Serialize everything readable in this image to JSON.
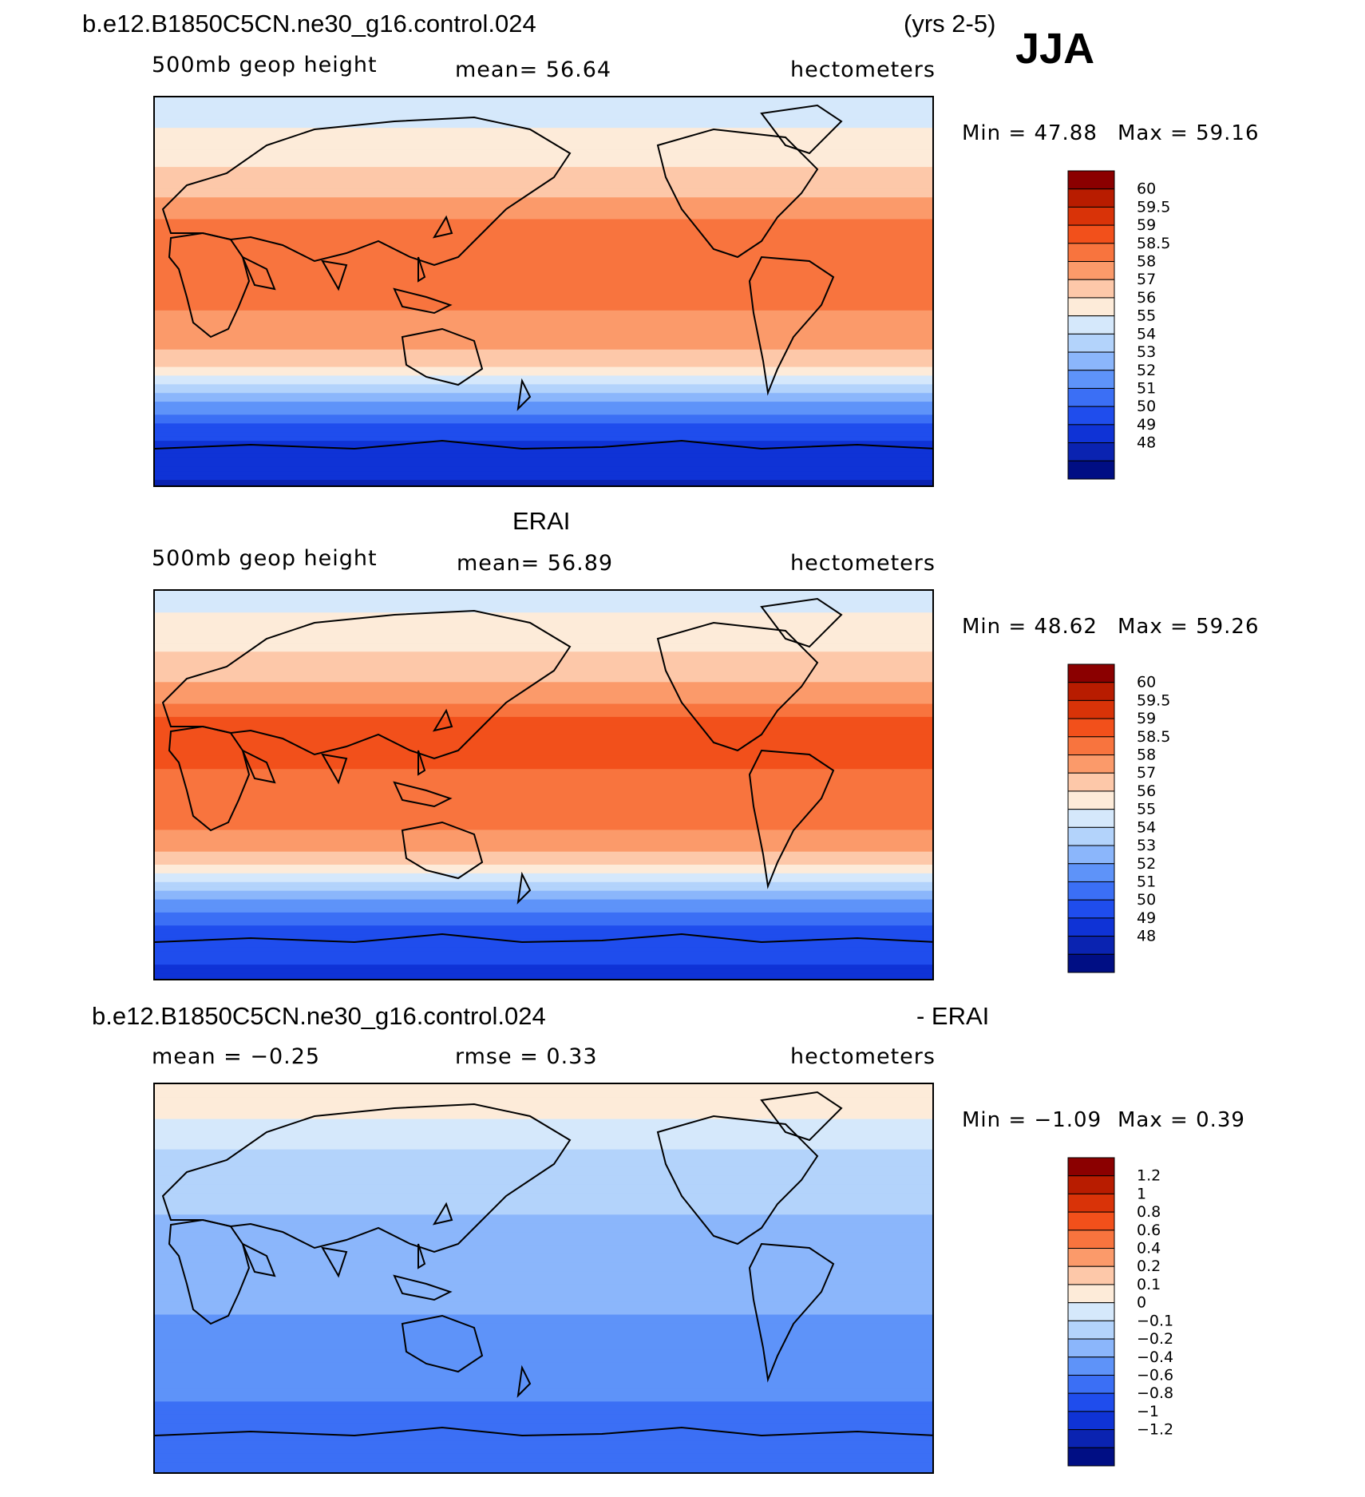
{
  "figure": {
    "case_title": "b.e12.B1850C5CN.ne30_g16.control.024",
    "years": "(yrs 2-5)",
    "season": "JJA",
    "obs_title": "ERAI",
    "diff_case_title": "b.e12.B1850C5CN.ne30_g16.control.024",
    "diff_suffix": "- ERAI"
  },
  "panels": [
    {
      "variable": "500mb  geop height",
      "mean_text": "mean=   56.64",
      "units": "hectometers",
      "min_text": "Min =   47.88",
      "max_text": "Max =   59.16"
    },
    {
      "variable": "500mb  geop height",
      "mean_text": "mean=   56.89",
      "units": "hectometers",
      "min_text": "Min =   48.62",
      "max_text": "Max =   59.26"
    },
    {
      "mean_text": "mean =   −0.25",
      "rmse_text": "rmse =    0.33",
      "units": "hectometers",
      "min_text": "Min =   −1.09",
      "max_text": "Max =    0.39"
    }
  ],
  "colors": {
    "abs_scale": [
      "#8b0000",
      "#b81c00",
      "#d93308",
      "#f2501b",
      "#f8743e",
      "#fb9a6a",
      "#fdc8a9",
      "#fdebd9",
      "#d5e8fb",
      "#b3d3fb",
      "#8bb6fb",
      "#5e93f9",
      "#3b6ff5",
      "#1f4ded",
      "#0f33d6",
      "#0a23b1",
      "#000e84"
    ],
    "diff_scale": [
      "#8b0000",
      "#b81c00",
      "#d93308",
      "#f2501b",
      "#f8743e",
      "#fb9a6a",
      "#fdc8a9",
      "#fdebd9",
      "#d5e8fb",
      "#b3d3fb",
      "#8bb6fb",
      "#5e93f9",
      "#3b6ff5",
      "#1f4ded",
      "#0f33d6",
      "#0a23b1",
      "#000e84"
    ]
  },
  "chart_data": [
    {
      "type": "heatmap",
      "title": "b.e12.B1850C5CN.ne30_g16.control.024 (yrs 2-5) JJA",
      "variable": "500mb geop height",
      "units": "hectometers",
      "mean": 56.64,
      "min": 47.88,
      "max": 59.16,
      "colorbar_levels": [
        "60",
        "59.5",
        "59",
        "58.5",
        "58",
        "57",
        "56",
        "55",
        "54",
        "53",
        "52",
        "51",
        "50",
        "49",
        "48"
      ],
      "zonal_profile": {
        "lat": [
          90,
          75,
          60,
          45,
          30,
          15,
          0,
          -15,
          -30,
          -40,
          -50,
          -60,
          -70,
          -90
        ],
        "value": [
          54.5,
          55.5,
          56.3,
          57.4,
          58.6,
          58.6,
          58.3,
          58.2,
          57.2,
          55.0,
          52.5,
          50.5,
          49.3,
          48.3
        ]
      }
    },
    {
      "type": "heatmap",
      "title": "ERAI",
      "variable": "500mb geop height",
      "units": "hectometers",
      "mean": 56.89,
      "min": 48.62,
      "max": 59.26,
      "colorbar_levels": [
        "60",
        "59.5",
        "59",
        "58.5",
        "58",
        "57",
        "56",
        "55",
        "54",
        "53",
        "52",
        "51",
        "50",
        "49",
        "48"
      ],
      "zonal_profile": {
        "lat": [
          90,
          75,
          60,
          45,
          30,
          15,
          0,
          -15,
          -30,
          -40,
          -50,
          -60,
          -70,
          -90
        ],
        "value": [
          54.8,
          55.8,
          56.6,
          57.8,
          58.9,
          58.8,
          58.7,
          58.6,
          57.6,
          55.5,
          53.0,
          51.0,
          49.8,
          49.3
        ]
      }
    },
    {
      "type": "heatmap",
      "title": "b.e12.B1850C5CN.ne30_g16.control.024 - ERAI",
      "units": "hectometers",
      "mean": -0.25,
      "rmse": 0.33,
      "min": -1.09,
      "max": 0.39,
      "colorbar_levels": [
        "1.2",
        "1",
        "0.8",
        "0.6",
        "0.4",
        "0.2",
        "0.1",
        "0",
        "−0.1",
        "−0.2",
        "−0.4",
        "−0.6",
        "−0.8",
        "−1",
        "−1.2"
      ],
      "zonal_profile": {
        "lat": [
          90,
          75,
          60,
          45,
          30,
          15,
          0,
          -15,
          -30,
          -45,
          -60,
          -75,
          -90
        ],
        "value": [
          0.15,
          0.05,
          -0.05,
          -0.1,
          -0.15,
          -0.2,
          -0.25,
          -0.3,
          -0.35,
          -0.4,
          -0.55,
          -0.6,
          -0.5
        ]
      }
    }
  ]
}
